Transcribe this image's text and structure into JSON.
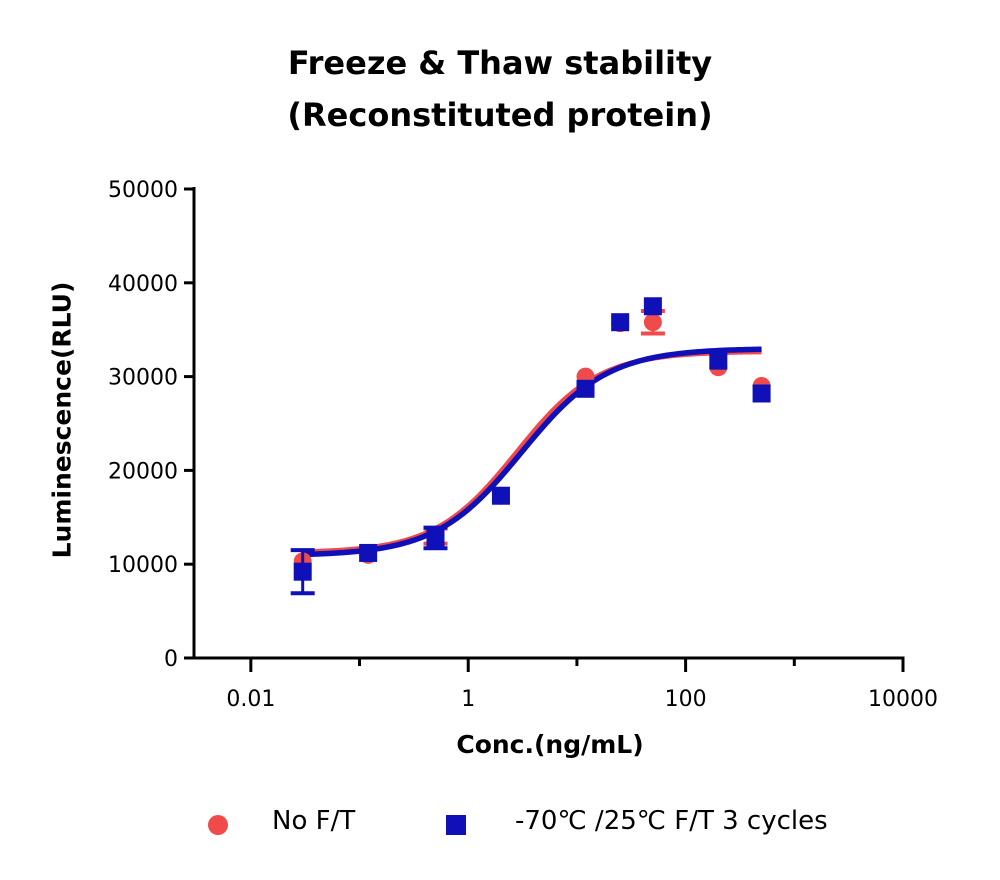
{
  "chart_data": {
    "type": "scatter",
    "title": [
      "Freeze & Thaw stability",
      "(Reconstituted protein)"
    ],
    "xlabel": "Conc.(ng/mL)",
    "ylabel": "Luminescence(RLU)",
    "xscale": "log",
    "xlim": [
      0.003,
      10000
    ],
    "ylim": [
      0,
      50000
    ],
    "x_ticks": [
      0.01,
      1,
      100,
      10000
    ],
    "x_tick_labels": [
      "0.01",
      "1",
      "100",
      "10000"
    ],
    "y_ticks": [
      0,
      10000,
      20000,
      30000,
      40000,
      50000
    ],
    "y_tick_labels": [
      "0",
      "10000",
      "20000",
      "30000",
      "40000",
      "50000"
    ],
    "grid": false,
    "legend_position": "bottom",
    "series": [
      {
        "name": "No F/T",
        "marker": "circle",
        "color": "#f04a4a",
        "x": [
          0.03,
          0.12,
          0.5,
          2,
          12,
          25,
          50,
          200,
          500
        ],
        "y": [
          10300,
          11000,
          13000,
          17300,
          30000,
          35700,
          35800,
          31000,
          29000
        ],
        "err": [
          0,
          0,
          800,
          0,
          0,
          0,
          1200,
          0,
          0
        ],
        "fit": {
          "bottom": 11200,
          "top": 32700,
          "ec50": 2.8,
          "hill": 1.15
        }
      },
      {
        "name": "-70℃ /25℃  F/T 3 cycles",
        "marker": "square",
        "color": "#1010b8",
        "x": [
          0.03,
          0.12,
          0.5,
          2,
          12,
          25,
          50,
          200,
          500
        ],
        "y": [
          9200,
          11200,
          12800,
          17300,
          28700,
          35800,
          37500,
          31700,
          28200
        ],
        "err": [
          2300,
          0,
          1100,
          0,
          0,
          0,
          0,
          0,
          0
        ],
        "fit": {
          "bottom": 10900,
          "top": 33000,
          "ec50": 3.1,
          "hill": 1.1
        }
      }
    ]
  }
}
